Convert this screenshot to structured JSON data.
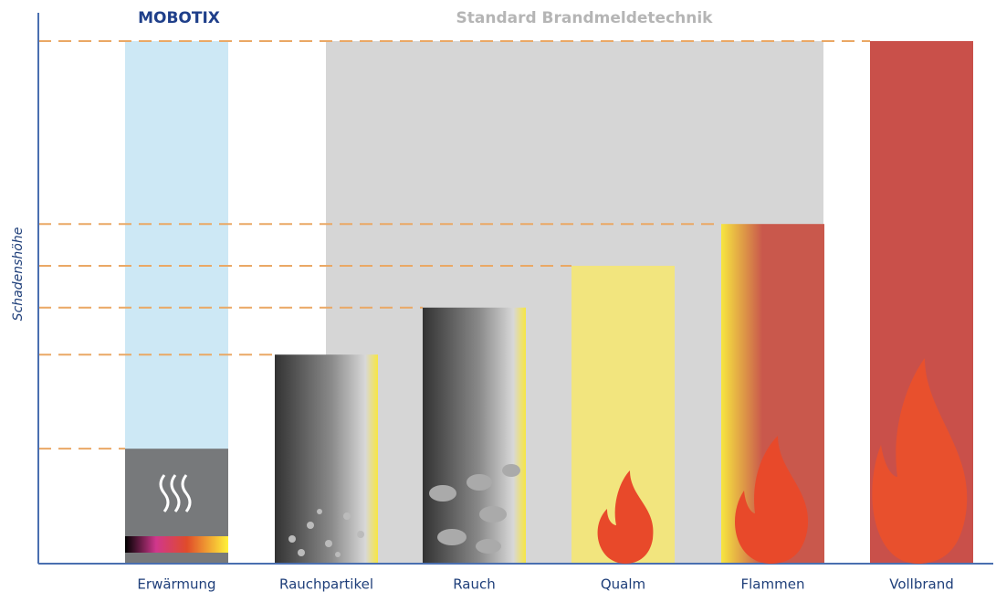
{
  "chart_data": {
    "type": "bar",
    "annotations": [
      "MOBOTIX",
      "Standard Brandmeldetechnik"
    ],
    "y_label": "Schadenshöhe",
    "categories": [
      "Erwärmung",
      "Rauchpartikel",
      "Rauch",
      "Qualm",
      "Flammen",
      "Vollbrand"
    ],
    "values": [
      22,
      40,
      49,
      57,
      65,
      100
    ],
    "colors": [
      "#77797b",
      "#333333",
      "#333333",
      "#f2e57e",
      "#c9584c",
      "#c9504a"
    ],
    "ylim": [
      0,
      100
    ]
  }
}
